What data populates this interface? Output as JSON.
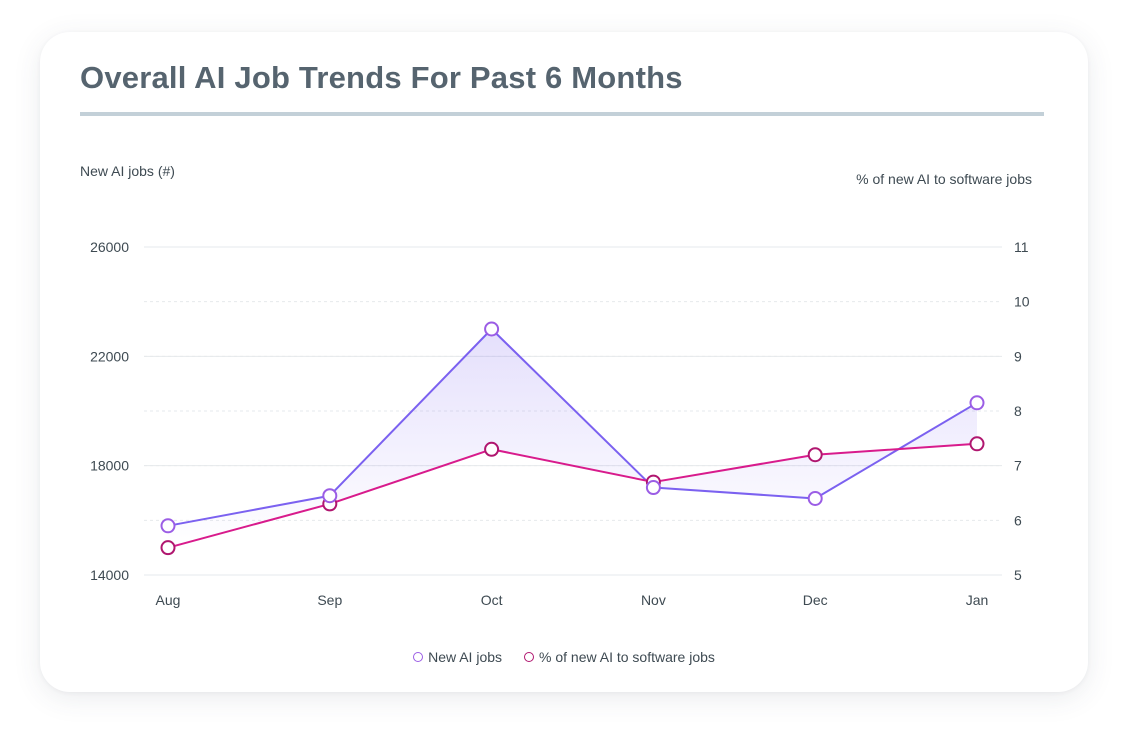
{
  "title": "Overall AI Job Trends For Past 6 Months",
  "colors": {
    "title": "#56646f",
    "rule": "#c3d0d8",
    "jobs": "#7b61f0",
    "jobs_marker": "#9b5de5",
    "pct": "#d81b8c",
    "pct_marker": "#b0166f",
    "grid": "#e6e9ec"
  },
  "chart_data": {
    "type": "line",
    "categories": [
      "Aug",
      "Sep",
      "Oct",
      "Nov",
      "Dec",
      "Jan"
    ],
    "y_left": {
      "label": "New AI jobs (#)",
      "ticks": [
        "26000",
        "22000",
        "18000",
        "14000"
      ],
      "range": [
        14000,
        26000
      ]
    },
    "y_right": {
      "label": "% of new AI to software jobs",
      "ticks": [
        "11",
        "10",
        "9",
        "8",
        "7",
        "6",
        "5"
      ],
      "range": [
        5,
        11
      ]
    },
    "series": [
      {
        "name": "New AI jobs",
        "axis": "left",
        "values": [
          15800,
          16900,
          23000,
          17200,
          16800,
          20300
        ],
        "area_fill": true
      },
      {
        "name": "% of new AI to software jobs",
        "axis": "right",
        "values": [
          5.5,
          6.3,
          7.3,
          6.7,
          7.2,
          7.4
        ]
      }
    ],
    "grid": true,
    "legend_position": "bottom-center"
  }
}
